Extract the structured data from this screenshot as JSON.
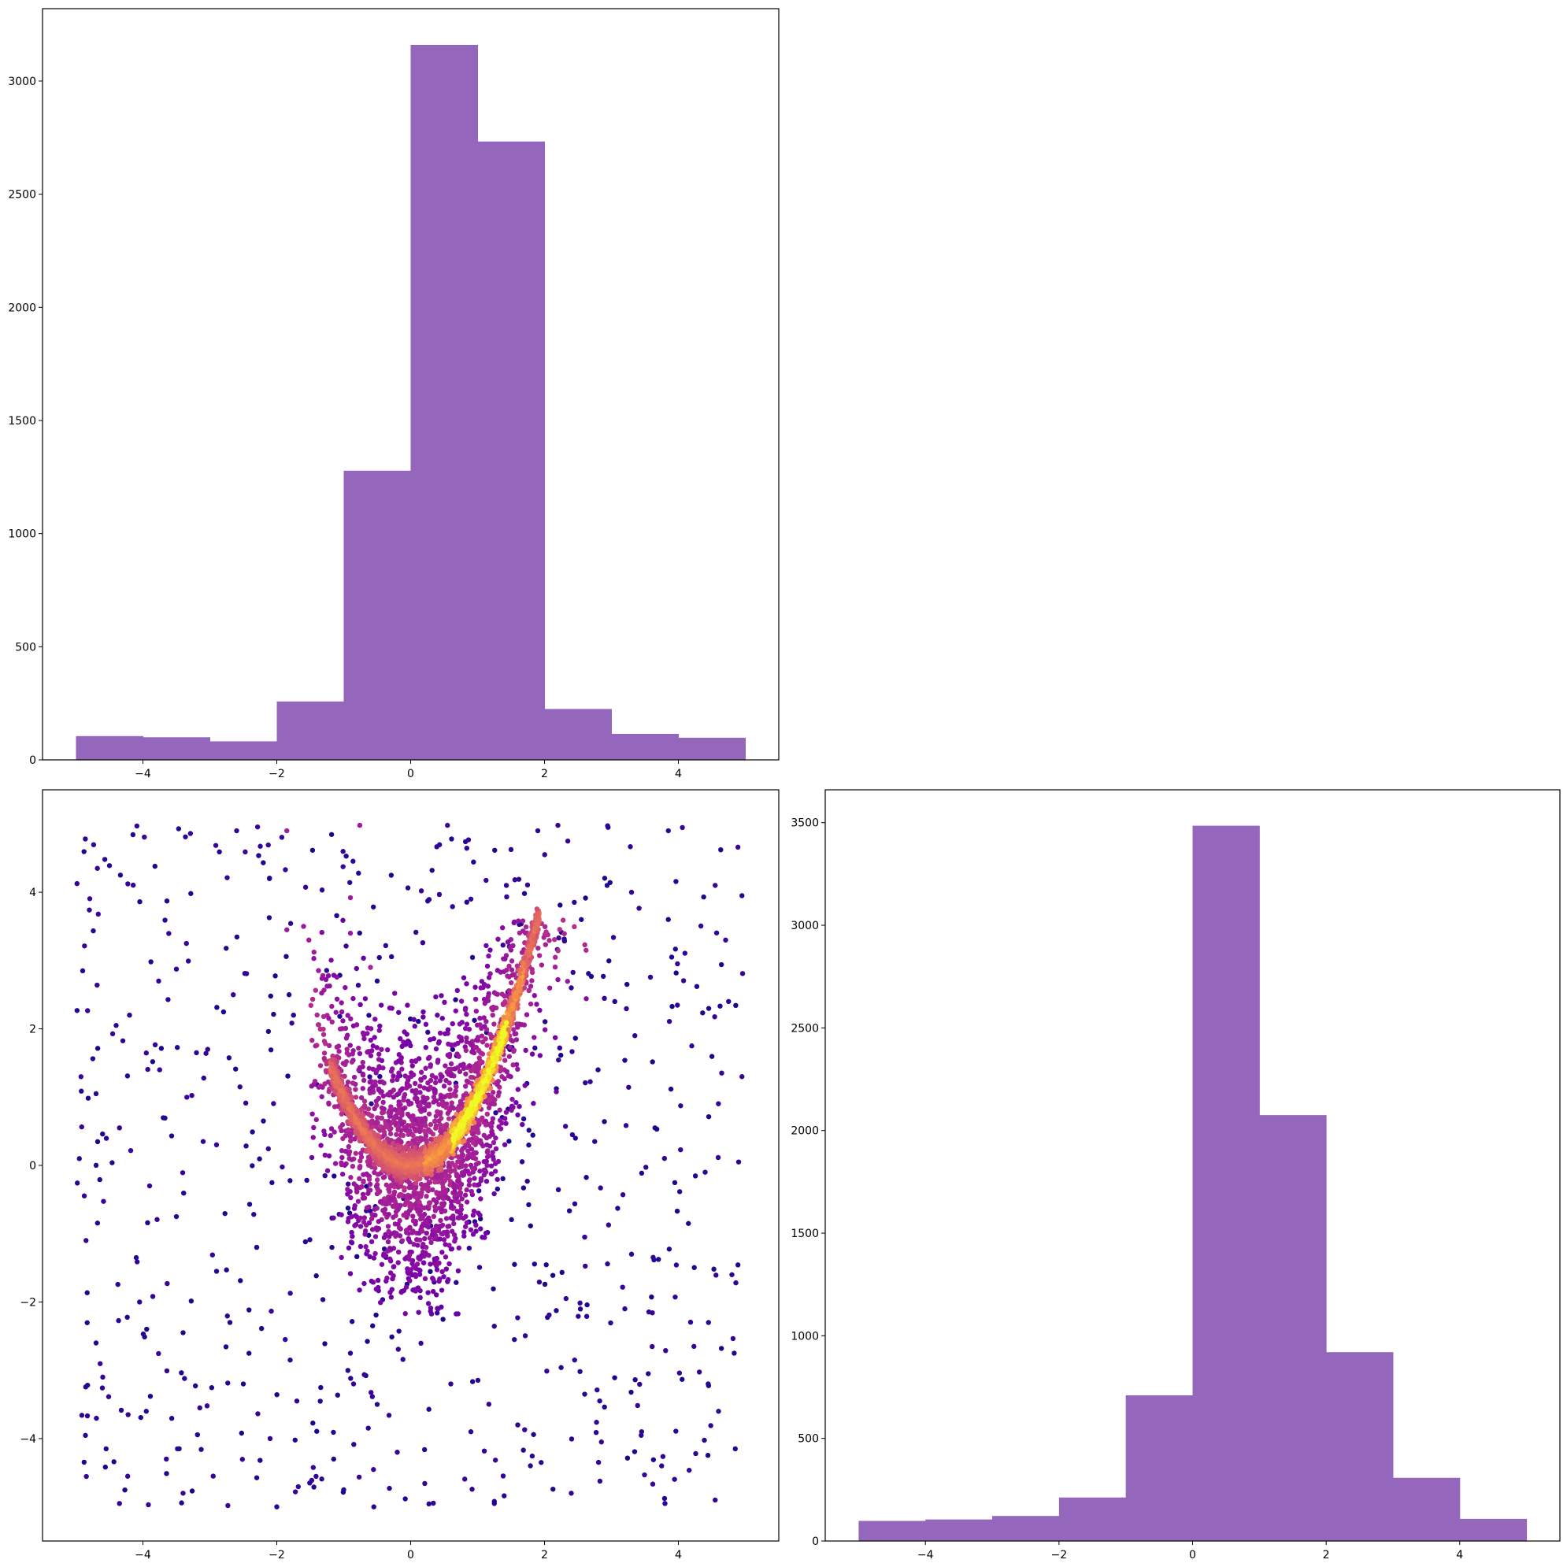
{
  "colors": {
    "hist_fill": "#9467bd",
    "axis": "#000000",
    "background": "#ffffff",
    "scatter_colormap": "plasma"
  },
  "chart_data": [
    {
      "id": "hist-x",
      "type": "bar",
      "subtype": "histogram",
      "bin_edges": [
        -5,
        -4,
        -3,
        -2,
        -1,
        0,
        1,
        2,
        3,
        4,
        5
      ],
      "values": [
        105,
        100,
        82,
        258,
        1278,
        3160,
        2733,
        225,
        115,
        98
      ],
      "xlim": [
        -5.5,
        5.5
      ],
      "ylim": [
        0,
        3320
      ],
      "xticks": [
        -4,
        -2,
        0,
        2,
        4
      ],
      "xtick_labels": [
        "−4",
        "−2",
        "0",
        "2",
        "4"
      ],
      "yticks": [
        0,
        500,
        1000,
        1500,
        2000,
        2500,
        3000
      ],
      "ytick_labels": [
        "0",
        "500",
        "1000",
        "1500",
        "2000",
        "2500",
        "3000"
      ],
      "title": "",
      "xlabel": "",
      "ylabel": "",
      "grid": false
    },
    {
      "id": "scatter-xy",
      "type": "scatter",
      "note_encoding": "points colored by local density (plasma colormap): sparse uniform background on [-5,5]x[-5,5], a dense cloud around x in [-1.5,2.5], y in [-2,3.5], and a bright narrow curved ridge roughly following y = x^2 from x=-1.2 to x=1.9",
      "sample_points": [
        [
          -4.86,
          4.78
        ],
        [
          -4.5,
          4.39
        ],
        [
          -4.09,
          4.97
        ],
        [
          -3.29,
          4.86
        ],
        [
          -2.6,
          4.9
        ],
        [
          -1.85,
          4.9
        ],
        [
          -0.76,
          4.98
        ],
        [
          0.55,
          4.98
        ],
        [
          1.9,
          4.9
        ],
        [
          2.2,
          4.98
        ],
        [
          2.95,
          4.95
        ],
        [
          3.85,
          4.9
        ],
        [
          -4.8,
          3.74
        ],
        [
          -3.82,
          4.38
        ],
        [
          -2.11,
          4.2
        ],
        [
          -1.52,
          3.3
        ],
        [
          -0.9,
          3.92
        ],
        [
          0.16,
          4.02
        ],
        [
          0.9,
          3.9
        ],
        [
          1.43,
          4.1
        ],
        [
          2.55,
          3.6
        ],
        [
          3.3,
          4.0
        ],
        [
          4.55,
          4.1
        ],
        [
          4.95,
          3.95
        ],
        [
          -4.9,
          2.85
        ],
        [
          -4.2,
          2.2
        ],
        [
          -3.35,
          3.25
        ],
        [
          -2.65,
          2.5
        ],
        [
          -1.75,
          2.2
        ],
        [
          -0.5,
          2.7
        ],
        [
          2.4,
          2.6
        ],
        [
          3.05,
          2.4
        ],
        [
          3.9,
          3.05
        ],
        [
          4.75,
          2.4
        ],
        [
          -4.7,
          1.05
        ],
        [
          -4.4,
          2.05
        ],
        [
          -3.75,
          1.4
        ],
        [
          -3.2,
          1.65
        ],
        [
          -2.55,
          1.15
        ],
        [
          2.8,
          1.4
        ],
        [
          3.35,
          1.9
        ],
        [
          4.2,
          1.75
        ],
        [
          4.95,
          1.3
        ],
        [
          -4.95,
          0.1
        ],
        [
          -4.35,
          0.55
        ],
        [
          -3.9,
          -0.3
        ],
        [
          -3.1,
          0.35
        ],
        [
          -2.2,
          0.65
        ],
        [
          2.75,
          0.35
        ],
        [
          3.65,
          0.55
        ],
        [
          4.4,
          -0.1
        ],
        [
          4.9,
          0.05
        ],
        [
          -4.85,
          -1.1
        ],
        [
          -4.1,
          -1.35
        ],
        [
          -3.5,
          -0.75
        ],
        [
          -2.9,
          -1.55
        ],
        [
          -2.3,
          -1.2
        ],
        [
          2.6,
          -1.05
        ],
        [
          3.3,
          -1.3
        ],
        [
          4.15,
          -0.85
        ],
        [
          4.8,
          -1.6
        ],
        [
          -4.7,
          -2.6
        ],
        [
          -4.05,
          -2.0
        ],
        [
          -3.4,
          -2.45
        ],
        [
          -2.7,
          -2.3
        ],
        [
          -1.8,
          -2.85
        ],
        [
          -0.9,
          -2.75
        ],
        [
          1.55,
          -2.55
        ],
        [
          2.45,
          -2.85
        ],
        [
          3.2,
          -2.1
        ],
        [
          4.45,
          -2.3
        ],
        [
          -4.6,
          -3.1
        ],
        [
          -3.95,
          -3.6
        ],
        [
          -3.15,
          -3.55
        ],
        [
          -2.5,
          -3.2
        ],
        [
          -1.7,
          -3.45
        ],
        [
          -0.5,
          -3.5
        ],
        [
          0.6,
          -3.2
        ],
        [
          1.6,
          -3.8
        ],
        [
          2.6,
          -3.35
        ],
        [
          3.55,
          -3.05
        ],
        [
          4.6,
          -3.6
        ],
        [
          -4.55,
          -4.15
        ],
        [
          -3.65,
          -4.3
        ],
        [
          -2.95,
          -4.55
        ],
        [
          -2.1,
          -4.0
        ],
        [
          -1.15,
          -4.3
        ],
        [
          -0.2,
          -4.2
        ],
        [
          0.9,
          -3.9
        ],
        [
          1.95,
          -4.35
        ],
        [
          2.85,
          -4.05
        ],
        [
          3.75,
          -4.4
        ],
        [
          4.85,
          -4.15
        ],
        [
          -4.35,
          -4.95
        ],
        [
          -3.4,
          -4.8
        ],
        [
          -2.0,
          -5.0
        ],
        [
          -1.0,
          -4.75
        ],
        [
          -0.55,
          -5.0
        ],
        [
          1.25,
          -4.95
        ],
        [
          2.4,
          -4.8
        ],
        [
          3.8,
          -4.95
        ],
        [
          4.55,
          -4.9
        ],
        [
          -0.9,
          3.4
        ],
        [
          -0.6,
          2.9
        ],
        [
          -1.6,
          3.5
        ],
        [
          -1.85,
          3.45
        ]
      ],
      "cloud": {
        "x_range": [
          -1.5,
          2.7
        ],
        "y_range": [
          -2.2,
          3.6
        ],
        "count": 2200,
        "density": "medium"
      },
      "ridge": {
        "shape": "parabola",
        "equation": "y = x^2",
        "x_range": [
          -1.2,
          1.92
        ],
        "y_max": 3.65,
        "density": "high"
      },
      "xlim": [
        -5.5,
        5.5
      ],
      "ylim": [
        -5.5,
        5.5
      ],
      "xticks": [
        -4,
        -2,
        0,
        2,
        4
      ],
      "xtick_labels": [
        "−4",
        "−2",
        "0",
        "2",
        "4"
      ],
      "yticks": [
        -4,
        -2,
        0,
        2,
        4
      ],
      "ytick_labels": [
        "−4",
        "−2",
        "0",
        "2",
        "4"
      ],
      "title": "",
      "xlabel": "",
      "ylabel": "",
      "grid": false
    },
    {
      "id": "hist-y",
      "type": "bar",
      "subtype": "histogram",
      "bin_edges": [
        -5,
        -4,
        -3,
        -2,
        -1,
        0,
        1,
        2,
        3,
        4,
        5
      ],
      "values": [
        98,
        105,
        122,
        212,
        710,
        3485,
        2075,
        920,
        308,
        108
      ],
      "xlim": [
        -5.5,
        5.5
      ],
      "ylim": [
        0,
        3660
      ],
      "xticks": [
        -4,
        -2,
        0,
        2,
        4
      ],
      "xtick_labels": [
        "−4",
        "−2",
        "0",
        "2",
        "4"
      ],
      "yticks": [
        0,
        500,
        1000,
        1500,
        2000,
        2500,
        3000,
        3500
      ],
      "ytick_labels": [
        "0",
        "500",
        "1000",
        "1500",
        "2000",
        "2500",
        "3000",
        "3500"
      ],
      "title": "",
      "xlabel": "",
      "ylabel": "",
      "grid": false
    }
  ]
}
